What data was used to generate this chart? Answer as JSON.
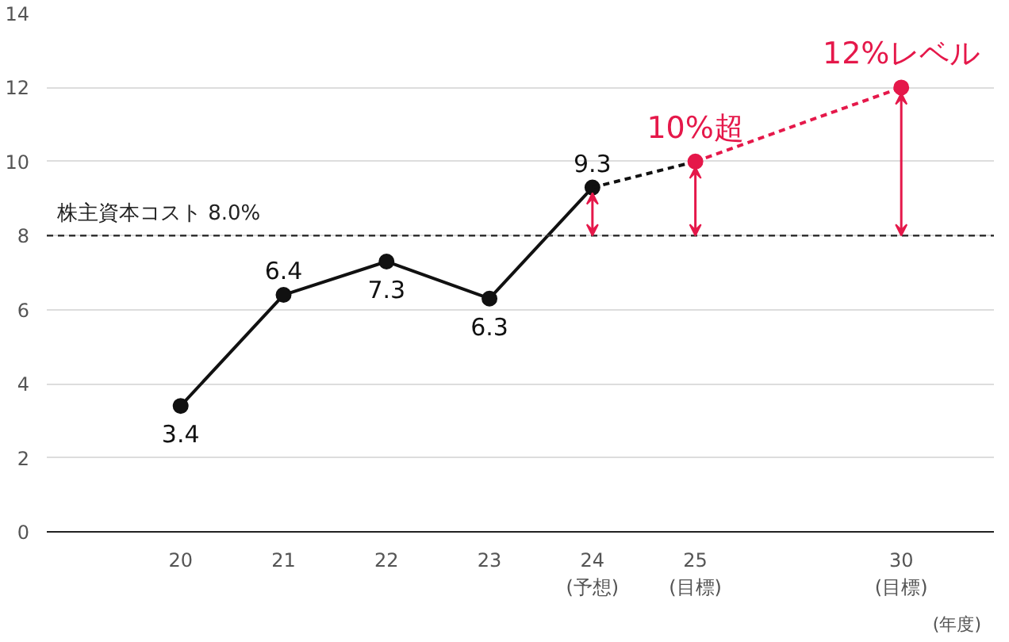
{
  "chart_data": {
    "type": "line",
    "categories": [
      "20",
      "21",
      "22",
      "23",
      "24\n(予想)",
      "25\n(目標)",
      null,
      "30\n(目標)"
    ],
    "xlabel": "(年度)",
    "ylim": [
      0,
      14
    ],
    "yticks": [
      0,
      2,
      4,
      6,
      8,
      10,
      12,
      14
    ],
    "grid": "y",
    "series": [
      {
        "color": "#111111",
        "values": [
          3.4,
          6.4,
          7.3,
          6.3,
          9.3,
          null,
          null,
          null
        ],
        "value_labels": [
          "3.4",
          "6.4",
          "7.3",
          "6.3",
          "9.3",
          null,
          null,
          null
        ],
        "marker": "circle",
        "line_style": "solid"
      },
      {
        "color": "#111111",
        "values": [
          null,
          null,
          null,
          null,
          9.3,
          10,
          null,
          null
        ],
        "line_style": "dashed"
      },
      {
        "color": "#e5184a",
        "values": [
          null,
          null,
          null,
          null,
          null,
          10,
          null,
          12
        ],
        "value_labels": [
          null,
          null,
          null,
          null,
          null,
          "10%超",
          null,
          "12%レベル"
        ],
        "marker": "circle",
        "line_style": "dashed"
      }
    ],
    "ref_lines": [
      {
        "axis": "y",
        "value": 8.0,
        "label": "株主資本コスト 8.0%",
        "color": "#333333",
        "line_style": "dashed"
      }
    ]
  }
}
